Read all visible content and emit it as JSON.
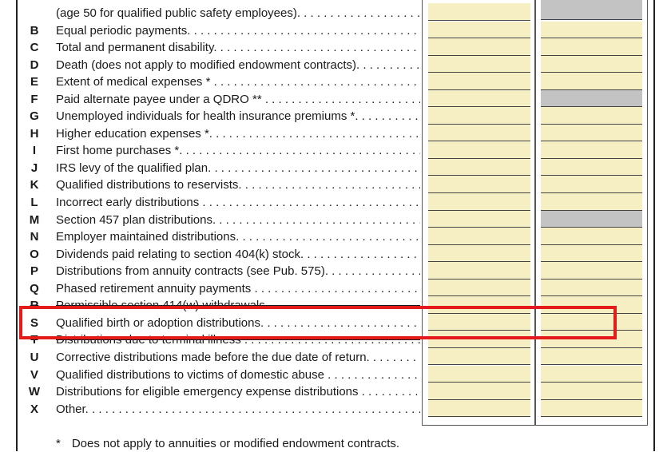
{
  "continuation_line": "(age 50 for qualified public safety employees).",
  "rows": [
    {
      "letter": "B",
      "text": "Equal periodic payments.",
      "col2_shaded": false,
      "struck": false
    },
    {
      "letter": "C",
      "text": "Total and permanent disability.",
      "col2_shaded": false,
      "struck": false
    },
    {
      "letter": "D",
      "text": "Death (does not apply to modified endowment contracts).",
      "col2_shaded": false,
      "struck": false
    },
    {
      "letter": "E",
      "text": "Extent of medical expenses *",
      "col2_shaded": false,
      "struck": false
    },
    {
      "letter": "F",
      "text": "Paid alternate payee under a QDRO **",
      "col2_shaded": true,
      "struck": false
    },
    {
      "letter": "G",
      "text": "Unemployed individuals for health insurance premiums *.",
      "col2_shaded": false,
      "struck": false
    },
    {
      "letter": "H",
      "text": "Higher education expenses *.",
      "col2_shaded": false,
      "struck": false
    },
    {
      "letter": "I",
      "text": "First home purchases *.",
      "col2_shaded": false,
      "struck": false
    },
    {
      "letter": "J",
      "text": "IRS levy of the qualified plan.",
      "col2_shaded": false,
      "struck": false
    },
    {
      "letter": "K",
      "text": "Qualified distributions to reservists.",
      "col2_shaded": false,
      "struck": false
    },
    {
      "letter": "L",
      "text": "Incorrect early distributions",
      "col2_shaded": false,
      "struck": false
    },
    {
      "letter": "M",
      "text": "Section 457 plan distributions.",
      "col2_shaded": true,
      "struck": false
    },
    {
      "letter": "N",
      "text": "Employer maintained distributions.",
      "col2_shaded": false,
      "struck": false
    },
    {
      "letter": "O",
      "text": "Dividends paid relating to section 404(k) stock.",
      "col2_shaded": false,
      "struck": false
    },
    {
      "letter": "P",
      "text": "Distributions from annuity contracts (see Pub. 575).",
      "col2_shaded": false,
      "struck": false
    },
    {
      "letter": "Q",
      "text": "Phased retirement annuity payments",
      "col2_shaded": false,
      "struck": false
    },
    {
      "letter": "R",
      "text": "Permissible section 414(w) withdrawals.",
      "col2_shaded": false,
      "struck": true
    },
    {
      "letter": "S",
      "text": "Qualified birth or adoption distributions.",
      "col2_shaded": false,
      "struck": false
    },
    {
      "letter": "T",
      "text": "Distributions due to terminal illness",
      "col2_shaded": false,
      "struck": true
    },
    {
      "letter": "U",
      "text": "Corrective distributions made before the due date of return.",
      "col2_shaded": false,
      "struck": false
    },
    {
      "letter": "V",
      "text": "Qualified distributions to victims of domestic abuse",
      "col2_shaded": false,
      "struck": false
    },
    {
      "letter": "W",
      "text": "Distributions for eligible emergency expense distributions",
      "col2_shaded": false,
      "struck": false
    },
    {
      "letter": "X",
      "text": "Other.",
      "col2_shaded": false,
      "struck": false
    }
  ],
  "footnote": {
    "star": "*",
    "text": "Does not apply to annuities or modified endowment contracts."
  },
  "colors": {
    "input_fill": "#f5efc3",
    "shaded_fill": "#c3c3c3",
    "highlight": "#e41b1b"
  }
}
